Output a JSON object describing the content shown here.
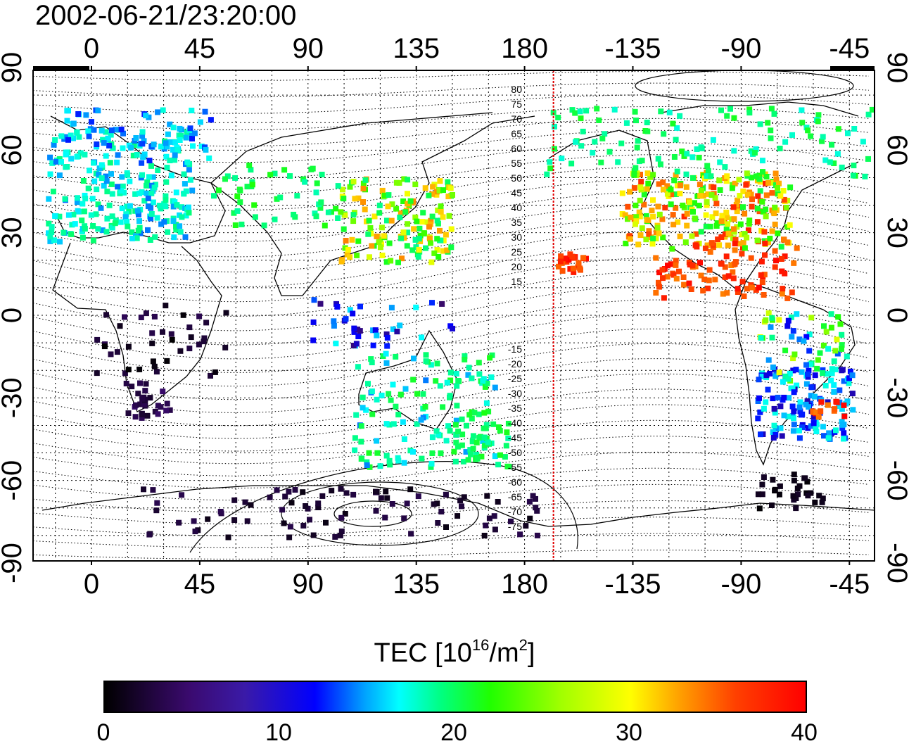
{
  "title": "2002-06-21/23:20:00",
  "map": {
    "top_lon_labels": [
      "0",
      "45",
      "90",
      "135",
      "180",
      "-135",
      "-90",
      "-45"
    ],
    "bottom_lon_labels": [
      "0",
      "45",
      "90",
      "135",
      "180",
      "-135",
      "-90",
      "-45"
    ],
    "left_lat_labels": [
      "90",
      "60",
      "30",
      "0",
      "-30",
      "-60",
      "-90"
    ],
    "right_lat_labels": [
      "90",
      "60",
      "30",
      "0",
      "-30",
      "-60",
      "-90"
    ],
    "mlat_labels": [
      "80",
      "75",
      "70",
      "65",
      "60",
      "55",
      "50",
      "45",
      "40",
      "35",
      "30",
      "25",
      "20",
      "15",
      "-15",
      "-20",
      "-25",
      "-30",
      "-35",
      "-40",
      "-45",
      "-50",
      "-55",
      "-60",
      "-65",
      "-70",
      "-75"
    ],
    "marker_line_color": "#e00000",
    "marker_line_lon": -168
  },
  "colorbar": {
    "title_prefix": "TEC  [10",
    "title_exp1": "16",
    "title_mid": "/m",
    "title_exp2": "2",
    "title_suffix": "]",
    "tick_labels": [
      "0",
      "10",
      "20",
      "30",
      "40"
    ],
    "range": [
      0,
      40
    ],
    "colormap": [
      "#000000",
      "#3a0a6e",
      "#0000ff",
      "#00ffff",
      "#00ff80",
      "#20ff00",
      "#ffff00",
      "#ffa000",
      "#ff0000"
    ]
  }
}
